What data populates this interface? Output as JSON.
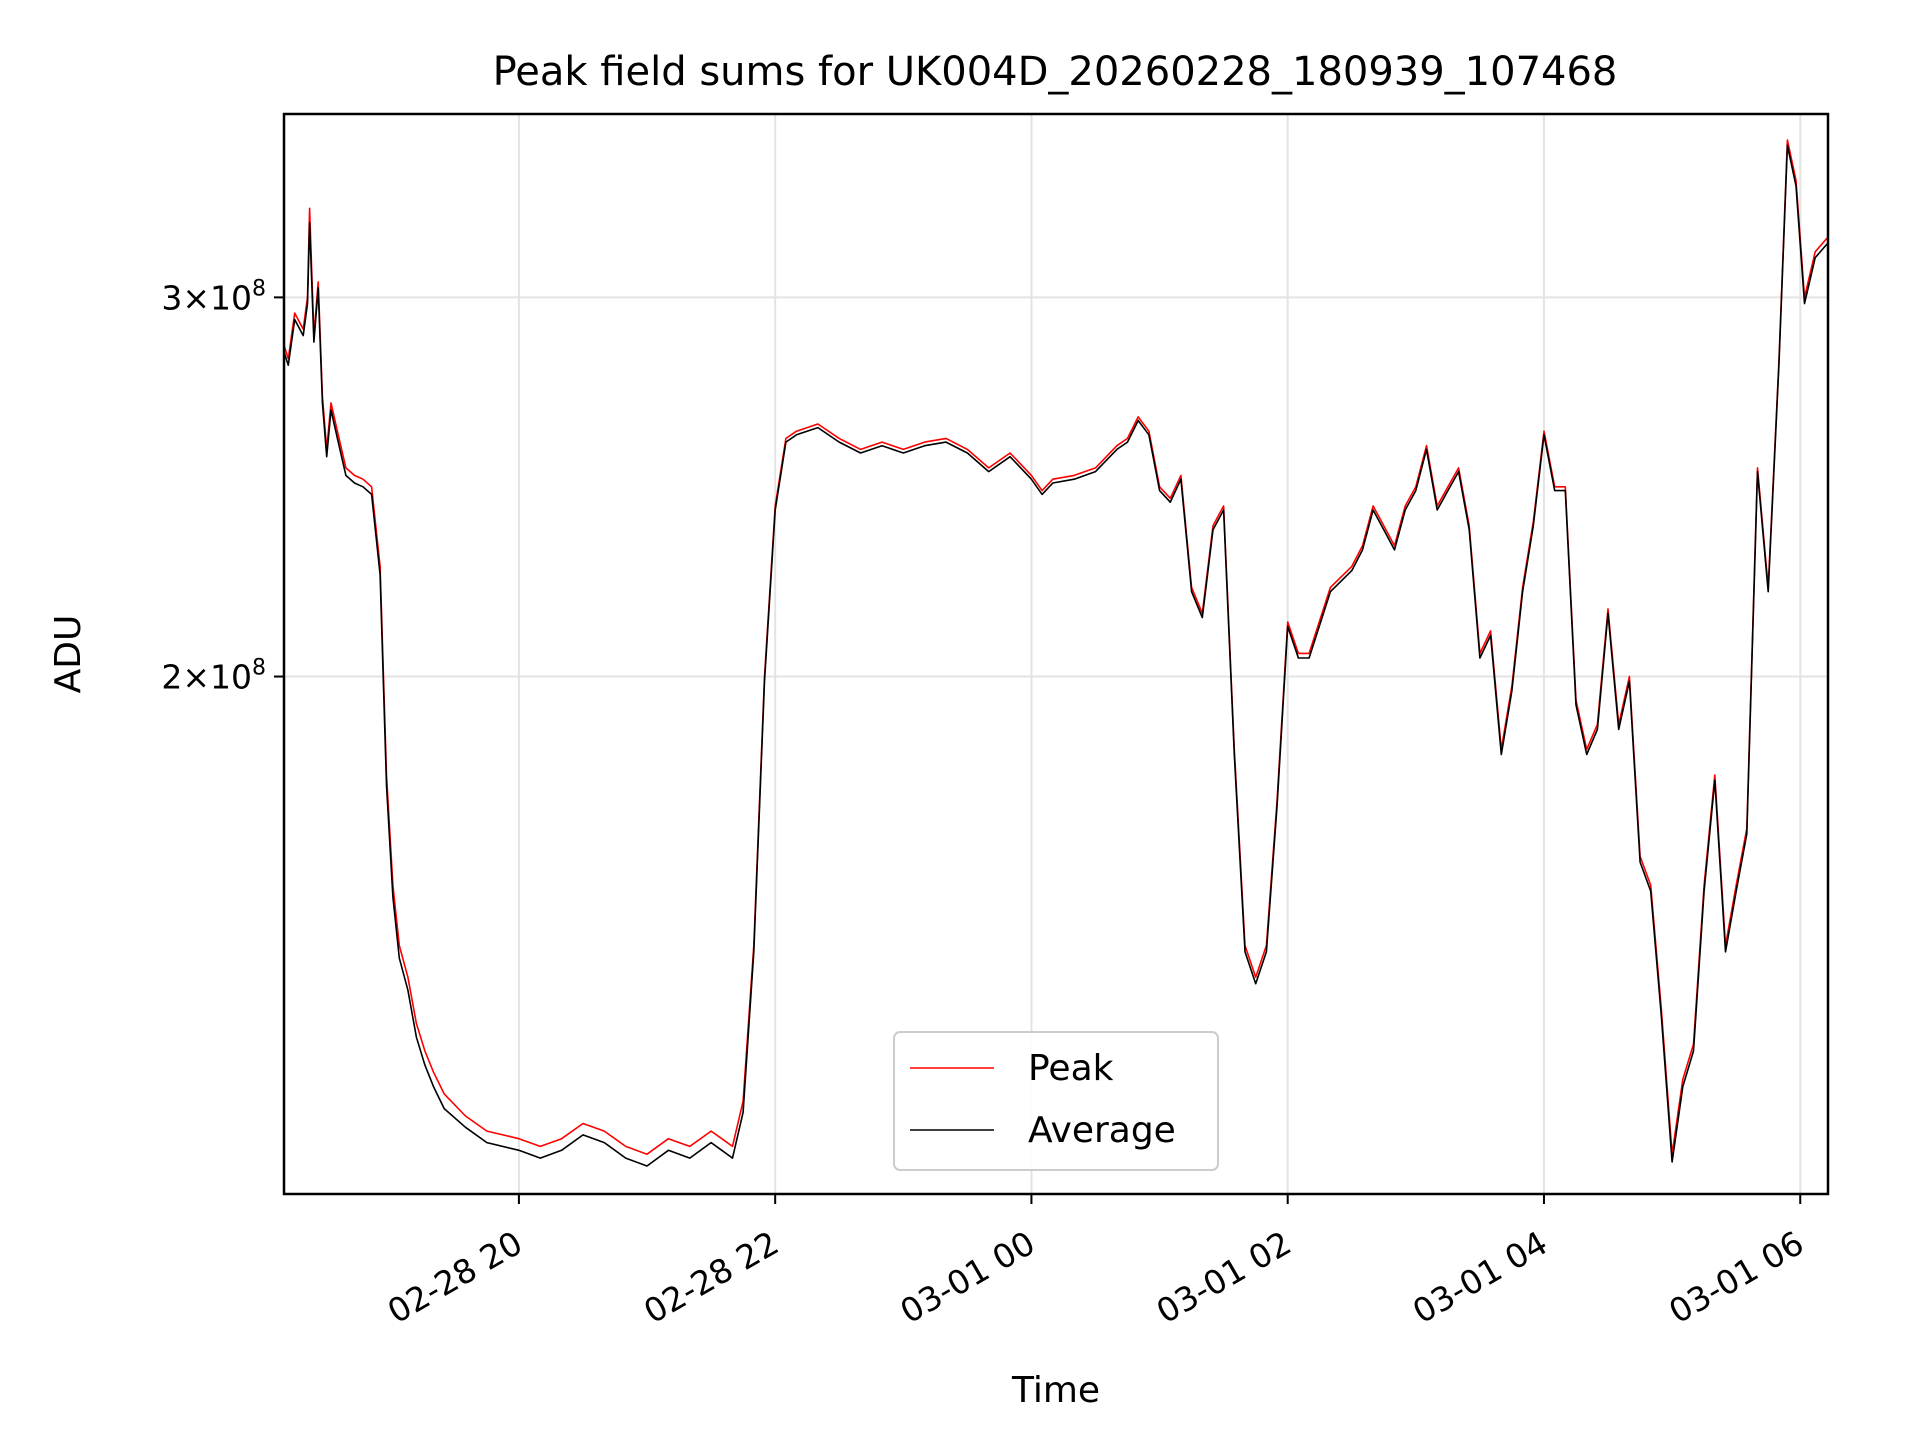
{
  "chart_data": {
    "type": "line",
    "title": "Peak field sums for UK004D_20260228_180939_107468",
    "xlabel": "Time",
    "ylabel": "ADU",
    "yscale": "log",
    "grid": true,
    "legend_position": "lower center",
    "xlim": [
      "2026-02-28 18:10",
      "2026-03-01 06:13"
    ],
    "ylim": [
      115000000,
      365000000
    ],
    "x_ticks": [
      {
        "value": "2026-02-28 20:00",
        "label": "02-28 20"
      },
      {
        "value": "2026-02-28 22:00",
        "label": "02-28 22"
      },
      {
        "value": "2026-03-01 00:00",
        "label": "03-01 00"
      },
      {
        "value": "2026-03-01 02:00",
        "label": "03-01 02"
      },
      {
        "value": "2026-03-01 04:00",
        "label": "03-01 04"
      },
      {
        "value": "2026-03-01 06:00",
        "label": "03-01 06"
      }
    ],
    "y_ticks": [
      {
        "value": 200000000,
        "mantissa": "2",
        "exponent": "8"
      },
      {
        "value": 300000000,
        "mantissa": "3",
        "exponent": "8"
      }
    ],
    "x": [
      "2026-02-28 18:10",
      "2026-02-28 18:12",
      "2026-02-28 18:15",
      "2026-02-28 18:19",
      "2026-02-28 18:21",
      "2026-02-28 18:22",
      "2026-02-28 18:24",
      "2026-02-28 18:26",
      "2026-02-28 18:28",
      "2026-02-28 18:30",
      "2026-02-28 18:32",
      "2026-02-28 18:35",
      "2026-02-28 18:39",
      "2026-02-28 18:43",
      "2026-02-28 18:47",
      "2026-02-28 18:51",
      "2026-02-28 18:55",
      "2026-02-28 18:58",
      "2026-02-28 19:01",
      "2026-02-28 19:04",
      "2026-02-28 19:08",
      "2026-02-28 19:12",
      "2026-02-28 19:16",
      "2026-02-28 19:20",
      "2026-02-28 19:25",
      "2026-02-28 19:35",
      "2026-02-28 19:45",
      "2026-02-28 20:00",
      "2026-02-28 20:10",
      "2026-02-28 20:20",
      "2026-02-28 20:30",
      "2026-02-28 20:40",
      "2026-02-28 20:50",
      "2026-02-28 21:00",
      "2026-02-28 21:10",
      "2026-02-28 21:20",
      "2026-02-28 21:30",
      "2026-02-28 21:35",
      "2026-02-28 21:40",
      "2026-02-28 21:45",
      "2026-02-28 21:50",
      "2026-02-28 21:55",
      "2026-02-28 22:00",
      "2026-02-28 22:05",
      "2026-02-28 22:10",
      "2026-02-28 22:20",
      "2026-02-28 22:30",
      "2026-02-28 22:40",
      "2026-02-28 22:50",
      "2026-02-28 23:00",
      "2026-02-28 23:10",
      "2026-02-28 23:20",
      "2026-02-28 23:30",
      "2026-02-28 23:40",
      "2026-02-28 23:50",
      "2026-03-01 00:00",
      "2026-03-01 00:05",
      "2026-03-01 00:10",
      "2026-03-01 00:20",
      "2026-03-01 00:30",
      "2026-03-01 00:40",
      "2026-03-01 00:45",
      "2026-03-01 00:50",
      "2026-03-01 00:55",
      "2026-03-01 01:00",
      "2026-03-01 01:05",
      "2026-03-01 01:10",
      "2026-03-01 01:15",
      "2026-03-01 01:20",
      "2026-03-01 01:25",
      "2026-03-01 01:30",
      "2026-03-01 01:35",
      "2026-03-01 01:40",
      "2026-03-01 01:45",
      "2026-03-01 01:50",
      "2026-03-01 01:55",
      "2026-03-01 02:00",
      "2026-03-01 02:05",
      "2026-03-01 02:10",
      "2026-03-01 02:20",
      "2026-03-01 02:30",
      "2026-03-01 02:35",
      "2026-03-01 02:40",
      "2026-03-01 02:45",
      "2026-03-01 02:50",
      "2026-03-01 02:55",
      "2026-03-01 03:00",
      "2026-03-01 03:05",
      "2026-03-01 03:10",
      "2026-03-01 03:15",
      "2026-03-01 03:20",
      "2026-03-01 03:25",
      "2026-03-01 03:30",
      "2026-03-01 03:35",
      "2026-03-01 03:40",
      "2026-03-01 03:45",
      "2026-03-01 03:50",
      "2026-03-01 03:55",
      "2026-03-01 04:00",
      "2026-03-01 04:05",
      "2026-03-01 04:10",
      "2026-03-01 04:15",
      "2026-03-01 04:20",
      "2026-03-01 04:25",
      "2026-03-01 04:30",
      "2026-03-01 04:35",
      "2026-03-01 04:40",
      "2026-03-01 04:45",
      "2026-03-01 04:50",
      "2026-03-01 04:55",
      "2026-03-01 05:00",
      "2026-03-01 05:05",
      "2026-03-01 05:10",
      "2026-03-01 05:15",
      "2026-03-01 05:20",
      "2026-03-01 05:25",
      "2026-03-01 05:30",
      "2026-03-01 05:35",
      "2026-03-01 05:40",
      "2026-03-01 05:45",
      "2026-03-01 05:50",
      "2026-03-01 05:54",
      "2026-03-01 05:58",
      "2026-03-01 06:02",
      "2026-03-01 06:07",
      "2026-03-01 06:13"
    ],
    "series": [
      {
        "name": "Peak",
        "color": "#ff0000",
        "values": [
          285000000,
          281000000,
          295000000,
          290000000,
          300000000,
          330000000,
          288000000,
          305000000,
          270000000,
          255000000,
          268000000,
          260000000,
          250000000,
          248000000,
          247000000,
          245000000,
          225000000,
          180000000,
          160000000,
          150000000,
          145000000,
          138000000,
          134000000,
          131000000,
          128000000,
          125000000,
          123000000,
          122000000,
          121000000,
          122000000,
          124000000,
          123000000,
          121000000,
          120000000,
          122000000,
          121000000,
          123000000,
          122000000,
          121000000,
          127000000,
          150000000,
          200000000,
          240000000,
          258000000,
          260000000,
          262000000,
          258000000,
          255000000,
          257000000,
          255000000,
          257000000,
          258000000,
          255000000,
          250000000,
          254000000,
          248000000,
          244000000,
          247000000,
          248000000,
          250000000,
          256000000,
          258000000,
          264000000,
          260000000,
          245000000,
          242000000,
          248000000,
          220000000,
          214000000,
          235000000,
          240000000,
          185000000,
          150000000,
          145000000,
          150000000,
          175000000,
          212000000,
          205000000,
          205000000,
          220000000,
          225000000,
          230000000,
          240000000,
          235000000,
          230000000,
          240000000,
          245000000,
          256000000,
          240000000,
          245000000,
          250000000,
          235000000,
          205000000,
          210000000,
          185000000,
          198000000,
          220000000,
          236000000,
          260000000,
          245000000,
          245000000,
          195000000,
          185000000,
          190000000,
          215000000,
          190000000,
          200000000,
          165000000,
          160000000,
          140000000,
          120000000,
          130000000,
          135000000,
          160000000,
          180000000,
          150000000,
          160000000,
          170000000,
          250000000,
          220000000,
          280000000,
          355000000,
          340000000,
          300000000,
          315000000,
          320000000
        ]
      },
      {
        "name": "Average",
        "color": "#000000",
        "values": [
          283000000,
          279000000,
          293000000,
          288000000,
          298000000,
          325000000,
          286000000,
          303000000,
          268000000,
          253000000,
          266000000,
          258000000,
          248000000,
          246000000,
          245000000,
          243000000,
          223000000,
          178000000,
          158000000,
          148000000,
          143000000,
          136000000,
          132000000,
          129000000,
          126000000,
          123500000,
          121500000,
          120500000,
          119500000,
          120500000,
          122500000,
          121500000,
          119500000,
          118500000,
          120500000,
          119500000,
          121500000,
          120500000,
          119500000,
          125500000,
          149000000,
          199000000,
          239000000,
          257000000,
          259000000,
          261000000,
          257000000,
          254000000,
          256000000,
          254000000,
          256000000,
          257000000,
          254000000,
          249000000,
          253000000,
          247000000,
          243000000,
          246000000,
          247000000,
          249000000,
          255000000,
          257000000,
          263000000,
          259000000,
          244000000,
          241000000,
          247000000,
          219000000,
          213000000,
          234000000,
          239000000,
          184000000,
          149000000,
          144000000,
          149000000,
          174000000,
          211000000,
          204000000,
          204000000,
          219000000,
          224000000,
          229000000,
          239000000,
          234000000,
          229000000,
          239000000,
          244000000,
          255000000,
          239000000,
          244000000,
          249000000,
          234000000,
          204000000,
          209000000,
          184000000,
          197000000,
          219000000,
          235000000,
          259000000,
          244000000,
          244000000,
          194000000,
          184000000,
          189000000,
          214000000,
          189000000,
          199000000,
          164000000,
          159000000,
          139000000,
          119000000,
          129000000,
          134000000,
          159000000,
          179000000,
          149000000,
          159000000,
          169000000,
          249000000,
          219000000,
          279000000,
          353000000,
          338000000,
          298000000,
          313000000,
          318000000
        ]
      }
    ]
  }
}
